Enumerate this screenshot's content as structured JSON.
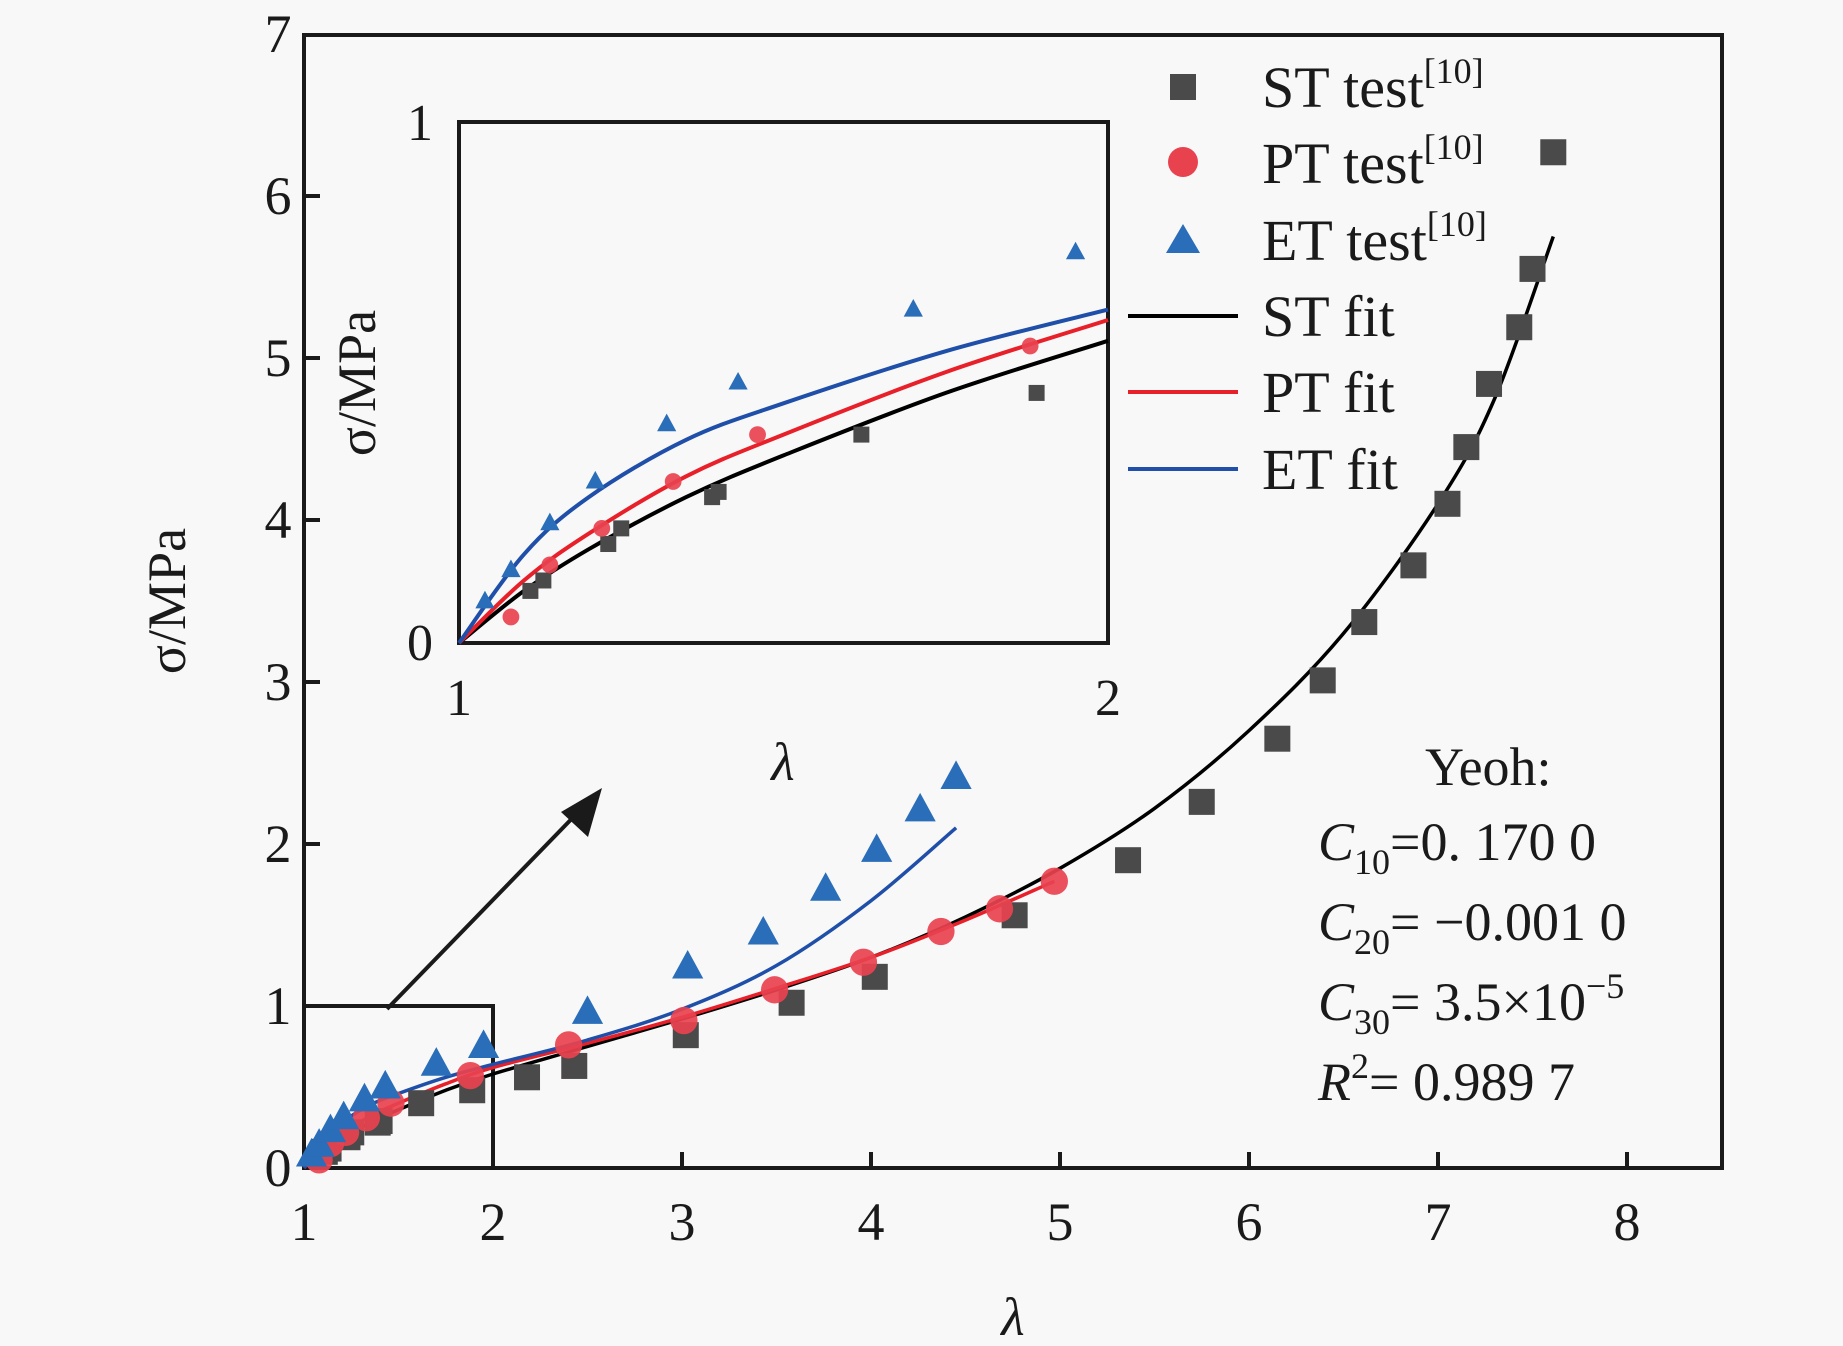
{
  "chart_data": {
    "type": "scatter",
    "title": "",
    "xlabel": "λ",
    "ylabel": "σ/MPa",
    "xlim": [
      1,
      8.5
    ],
    "ylim": [
      0,
      7
    ],
    "xticks": [
      "1",
      "2",
      "3",
      "4",
      "5",
      "6",
      "7",
      "8"
    ],
    "xtick_values": [
      1,
      2,
      3,
      4,
      5,
      6,
      7,
      8
    ],
    "yticks": [
      "0",
      "1",
      "2",
      "3",
      "4",
      "5",
      "6",
      "7"
    ],
    "ytick_values": [
      0,
      1,
      2,
      3,
      4,
      5,
      6,
      7
    ],
    "grid": false,
    "legend_position": "top-right",
    "colors": {
      "st": "#4a4a4a",
      "pt": "#e8424f",
      "et": "#2a6db8",
      "st_fit": "#000000",
      "pt_fit": "#e8202a",
      "et_fit": "#1f4fa8"
    },
    "series": [
      {
        "key": "st_test",
        "name": "ST test",
        "ref": "[10]",
        "kind": "points",
        "marker": "square",
        "x": [
          1.11,
          1.13,
          1.23,
          1.25,
          1.39,
          1.4,
          1.62,
          1.89,
          2.18,
          2.43,
          3.02,
          3.58,
          4.02,
          4.76,
          5.36,
          5.75,
          6.15,
          6.39,
          6.61,
          6.87,
          7.05,
          7.15,
          7.27,
          7.43,
          7.5,
          7.61
        ],
        "y": [
          0.1,
          0.12,
          0.19,
          0.22,
          0.28,
          0.29,
          0.4,
          0.48,
          0.56,
          0.63,
          0.82,
          1.02,
          1.18,
          1.56,
          1.9,
          2.26,
          2.65,
          3.01,
          3.37,
          3.72,
          4.1,
          4.45,
          4.84,
          5.19,
          5.55,
          6.27
        ]
      },
      {
        "key": "pt_test",
        "name": "PT test",
        "ref": "[10]",
        "kind": "points",
        "marker": "circle",
        "x": [
          1.08,
          1.14,
          1.22,
          1.33,
          1.46,
          1.88,
          2.4,
          3.01,
          3.49,
          3.96,
          4.37,
          4.68,
          4.97
        ],
        "y": [
          0.05,
          0.15,
          0.22,
          0.31,
          0.4,
          0.57,
          0.76,
          0.91,
          1.1,
          1.27,
          1.46,
          1.6,
          1.77
        ]
      },
      {
        "key": "et_test",
        "name": "ET test",
        "ref": "[10]",
        "kind": "points",
        "marker": "triangle",
        "x": [
          1.04,
          1.08,
          1.14,
          1.21,
          1.32,
          1.43,
          1.7,
          1.95,
          2.5,
          3.03,
          3.43,
          3.76,
          4.03,
          4.26,
          4.45
        ],
        "y": [
          0.08,
          0.14,
          0.23,
          0.31,
          0.42,
          0.5,
          0.64,
          0.75,
          0.96,
          1.24,
          1.45,
          1.72,
          1.96,
          2.21,
          2.41
        ]
      },
      {
        "key": "st_fit",
        "name": "ST fit",
        "kind": "line",
        "x": [
          1.0,
          1.1,
          1.2,
          1.35,
          1.5,
          1.75,
          2.0,
          2.5,
          3.0,
          3.5,
          4.0,
          4.5,
          5.0,
          5.5,
          6.0,
          6.5,
          7.0,
          7.3,
          7.61
        ],
        "y": [
          0.0,
          0.1,
          0.18,
          0.28,
          0.36,
          0.48,
          0.58,
          0.75,
          0.92,
          1.1,
          1.3,
          1.55,
          1.85,
          2.22,
          2.7,
          3.3,
          4.1,
          4.75,
          5.75
        ]
      },
      {
        "key": "pt_fit",
        "name": "PT fit",
        "kind": "line",
        "x": [
          1.0,
          1.1,
          1.2,
          1.35,
          1.5,
          1.75,
          2.0,
          2.5,
          3.0,
          3.5,
          4.0,
          4.5,
          4.97
        ],
        "y": [
          0.0,
          0.12,
          0.21,
          0.32,
          0.4,
          0.52,
          0.62,
          0.77,
          0.93,
          1.11,
          1.3,
          1.53,
          1.77
        ]
      },
      {
        "key": "et_fit",
        "name": "ET fit",
        "kind": "line",
        "x": [
          1.0,
          1.1,
          1.2,
          1.35,
          1.5,
          1.75,
          2.0,
          2.5,
          3.0,
          3.5,
          4.0,
          4.45
        ],
        "y": [
          0.0,
          0.17,
          0.28,
          0.39,
          0.46,
          0.56,
          0.64,
          0.79,
          0.98,
          1.25,
          1.65,
          2.1
        ]
      }
    ],
    "inset": {
      "xlabel": "λ",
      "ylabel": "σ/MPa",
      "xlim": [
        1,
        2
      ],
      "ylim": [
        0,
        1
      ],
      "xticks": [
        "1",
        "2"
      ],
      "yticks": [
        "0",
        "1"
      ],
      "zoom_region": {
        "x": [
          1,
          2
        ],
        "y": [
          0,
          1
        ]
      }
    },
    "annotation": {
      "title": "Yeoh:",
      "lines": [
        {
          "sym": "C",
          "sub": "10",
          "eq": "=0. 170 0"
        },
        {
          "sym": "C",
          "sub": "20",
          "eq": "= −0.001 0"
        },
        {
          "sym": "C",
          "sub": "30",
          "eq": "= 3.5×10",
          "sup": "−5"
        },
        {
          "sym": "R",
          "sup_sym": "2",
          "eq": "= 0.989 7"
        }
      ]
    }
  }
}
